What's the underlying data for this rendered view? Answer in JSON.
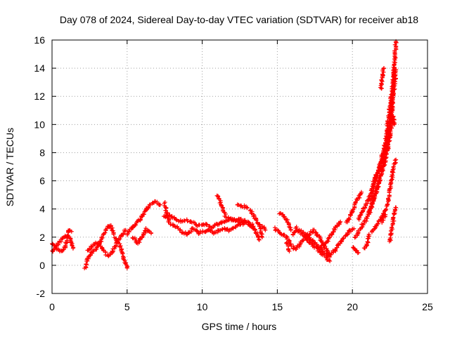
{
  "chart_data": {
    "type": "scatter",
    "title": "Day 078 of 2024, Sidereal Day-to-day VTEC variation (SDTVAR) for receiver ab18",
    "xlabel": "GPS time / hours",
    "ylabel": "SDTVAR / TECUs",
    "xlim": [
      0,
      25
    ],
    "ylim": [
      -2,
      16
    ],
    "xticks": [
      0,
      5,
      10,
      15,
      20,
      25
    ],
    "yticks": [
      -2,
      0,
      2,
      4,
      6,
      8,
      10,
      12,
      14,
      16
    ],
    "grid": true,
    "marker": "+",
    "series": [
      {
        "name": "SDTVAR",
        "color": "#ff0000",
        "tracks": [
          [
            [
              0.0,
              1.0
            ],
            [
              0.3,
              1.4
            ],
            [
              0.6,
              1.8
            ],
            [
              0.9,
              2.1
            ],
            [
              1.2,
              1.9
            ],
            [
              1.4,
              1.2
            ]
          ],
          [
            [
              0.0,
              1.6
            ],
            [
              0.3,
              1.2
            ],
            [
              0.6,
              1.0
            ],
            [
              0.9,
              1.3
            ],
            [
              1.1,
              2.5
            ],
            [
              1.3,
              2.4
            ]
          ],
          [
            [
              2.2,
              -0.2
            ],
            [
              2.4,
              0.5
            ],
            [
              2.7,
              1.0
            ],
            [
              3.0,
              1.2
            ],
            [
              3.3,
              1.9
            ],
            [
              3.6,
              2.6
            ],
            [
              3.9,
              2.9
            ],
            [
              4.1,
              2.2
            ]
          ],
          [
            [
              2.4,
              1.0
            ],
            [
              2.8,
              1.5
            ],
            [
              3.1,
              1.6
            ],
            [
              3.4,
              1.1
            ],
            [
              3.7,
              0.7
            ],
            [
              4.0,
              0.9
            ],
            [
              4.3,
              1.6
            ],
            [
              4.6,
              2.0
            ],
            [
              4.9,
              2.5
            ]
          ],
          [
            [
              4.2,
              2.0
            ],
            [
              4.4,
              1.6
            ],
            [
              4.6,
              1.2
            ],
            [
              4.8,
              0.4
            ],
            [
              5.0,
              -0.2
            ]
          ],
          [
            [
              5.0,
              2.2
            ],
            [
              5.3,
              2.6
            ],
            [
              5.6,
              3.0
            ],
            [
              5.9,
              3.3
            ],
            [
              6.2,
              3.8
            ],
            [
              6.5,
              4.3
            ],
            [
              6.9,
              4.5
            ],
            [
              7.2,
              4.3
            ]
          ],
          [
            [
              5.4,
              2.0
            ],
            [
              5.7,
              1.6
            ],
            [
              6.0,
              2.0
            ],
            [
              6.3,
              2.6
            ],
            [
              6.6,
              2.3
            ]
          ],
          [
            [
              7.4,
              3.4
            ],
            [
              7.8,
              3.6
            ],
            [
              8.2,
              3.3
            ],
            [
              8.6,
              3.1
            ],
            [
              9.0,
              3.2
            ],
            [
              9.4,
              3.0
            ],
            [
              9.8,
              2.8
            ],
            [
              10.2,
              2.9
            ],
            [
              10.6,
              2.7
            ],
            [
              11.0,
              2.9
            ],
            [
              11.5,
              3.1
            ],
            [
              12.0,
              3.3
            ],
            [
              12.5,
              3.1
            ],
            [
              13.0,
              3.0
            ],
            [
              13.4,
              2.6
            ]
          ],
          [
            [
              7.5,
              4.4
            ],
            [
              7.8,
              3.0
            ],
            [
              8.2,
              2.8
            ],
            [
              8.6,
              2.4
            ],
            [
              9.0,
              2.2
            ],
            [
              9.4,
              2.6
            ],
            [
              9.8,
              2.3
            ],
            [
              10.3,
              2.5
            ],
            [
              10.8,
              2.3
            ],
            [
              11.3,
              2.6
            ],
            [
              11.8,
              2.5
            ],
            [
              12.3,
              2.8
            ],
            [
              12.8,
              3.0
            ]
          ],
          [
            [
              11.0,
              5.0
            ],
            [
              11.2,
              4.5
            ],
            [
              11.4,
              3.9
            ],
            [
              11.6,
              3.4
            ]
          ],
          [
            [
              11.7,
              3.4
            ],
            [
              12.1,
              3.2
            ],
            [
              12.5,
              3.3
            ],
            [
              12.9,
              3.1
            ],
            [
              13.3,
              2.9
            ],
            [
              13.6,
              2.3
            ],
            [
              13.8,
              1.8
            ]
          ],
          [
            [
              12.3,
              4.3
            ],
            [
              12.7,
              4.2
            ],
            [
              13.0,
              4.1
            ]
          ],
          [
            [
              13.2,
              3.9
            ],
            [
              13.5,
              3.4
            ],
            [
              13.8,
              2.9
            ],
            [
              14.0,
              2.0
            ]
          ],
          [
            [
              14.0,
              2.8
            ],
            [
              14.2,
              2.5
            ]
          ],
          [
            [
              14.8,
              2.6
            ],
            [
              15.2,
              2.3
            ],
            [
              15.6,
              2.0
            ],
            [
              15.9,
              1.5
            ],
            [
              16.2,
              1.1
            ],
            [
              16.6,
              1.6
            ],
            [
              17.0,
              2.1
            ],
            [
              17.4,
              2.5
            ],
            [
              17.8,
              2.0
            ],
            [
              18.2,
              1.2
            ],
            [
              18.5,
              0.6
            ]
          ],
          [
            [
              15.1,
              3.7
            ],
            [
              15.4,
              3.5
            ],
            [
              15.7,
              3.1
            ],
            [
              15.9,
              2.5
            ]
          ],
          [
            [
              15.6,
              1.6
            ],
            [
              15.8,
              1.0
            ]
          ],
          [
            [
              16.0,
              2.2
            ],
            [
              16.4,
              2.5
            ],
            [
              16.8,
              2.3
            ],
            [
              17.2,
              1.9
            ],
            [
              17.6,
              1.5
            ],
            [
              18.0,
              1.0
            ],
            [
              18.4,
              0.7
            ],
            [
              18.7,
              0.9
            ],
            [
              19.0,
              1.3
            ],
            [
              19.4,
              1.9
            ],
            [
              19.8,
              2.4
            ],
            [
              20.1,
              2.6
            ]
          ],
          [
            [
              16.2,
              2.7
            ],
            [
              16.6,
              2.3
            ],
            [
              17.0,
              1.8
            ],
            [
              17.4,
              1.4
            ],
            [
              17.8,
              1.0
            ],
            [
              18.2,
              0.6
            ],
            [
              18.5,
              0.3
            ]
          ],
          [
            [
              18.0,
              1.4
            ],
            [
              18.3,
              1.7
            ],
            [
              18.6,
              2.2
            ],
            [
              18.9,
              2.7
            ],
            [
              19.2,
              3.1
            ]
          ],
          [
            [
              19.6,
              3.0
            ],
            [
              20.0,
              3.8
            ],
            [
              20.3,
              4.6
            ],
            [
              20.6,
              5.2
            ]
          ],
          [
            [
              20.0,
              1.3
            ],
            [
              20.2,
              1.1
            ],
            [
              20.4,
              0.9
            ]
          ],
          [
            [
              20.4,
              3.3
            ],
            [
              20.8,
              4.1
            ],
            [
              21.2,
              5.0
            ],
            [
              21.5,
              6.2
            ],
            [
              21.8,
              6.9
            ],
            [
              22.1,
              7.8
            ],
            [
              22.4,
              9.5
            ],
            [
              22.6,
              10.9
            ],
            [
              22.8,
              14.0
            ]
          ],
          [
            [
              20.2,
              2.0
            ],
            [
              20.5,
              2.6
            ],
            [
              20.9,
              3.2
            ],
            [
              21.2,
              3.9
            ],
            [
              21.5,
              5.0
            ],
            [
              21.8,
              6.1
            ],
            [
              22.1,
              7.0
            ],
            [
              22.4,
              8.6
            ],
            [
              22.7,
              10.6
            ],
            [
              22.8,
              10.0
            ]
          ],
          [
            [
              21.2,
              4.6
            ],
            [
              21.5,
              5.9
            ],
            [
              21.8,
              7.0
            ],
            [
              22.0,
              8.0
            ],
            [
              22.2,
              8.8
            ],
            [
              22.5,
              11.3
            ],
            [
              22.7,
              12.9
            ],
            [
              22.9,
              15.9
            ]
          ],
          [
            [
              21.0,
              3.6
            ],
            [
              21.3,
              4.3
            ],
            [
              21.6,
              5.2
            ],
            [
              21.9,
              6.5
            ],
            [
              22.1,
              7.5
            ],
            [
              22.4,
              9.2
            ],
            [
              22.6,
              10.6
            ],
            [
              22.9,
              13.9
            ]
          ],
          [
            [
              21.3,
              2.4
            ],
            [
              21.6,
              2.8
            ],
            [
              21.9,
              3.3
            ],
            [
              22.1,
              3.7
            ],
            [
              22.3,
              4.2
            ],
            [
              22.5,
              5.4
            ],
            [
              22.7,
              6.7
            ],
            [
              22.9,
              7.5
            ]
          ],
          [
            [
              22.0,
              3.1
            ],
            [
              22.1,
              3.3
            ],
            [
              22.2,
              3.6
            ]
          ],
          [
            [
              21.9,
              12.5
            ],
            [
              22.0,
              13.5
            ],
            [
              22.1,
              14.0
            ]
          ],
          [
            [
              20.8,
              1.2
            ],
            [
              21.0,
              1.6
            ],
            [
              21.1,
              2.2
            ]
          ],
          [
            [
              22.5,
              1.7
            ],
            [
              22.6,
              2.4
            ],
            [
              22.7,
              3.0
            ],
            [
              22.8,
              3.7
            ],
            [
              22.9,
              4.1
            ]
          ]
        ]
      }
    ]
  }
}
